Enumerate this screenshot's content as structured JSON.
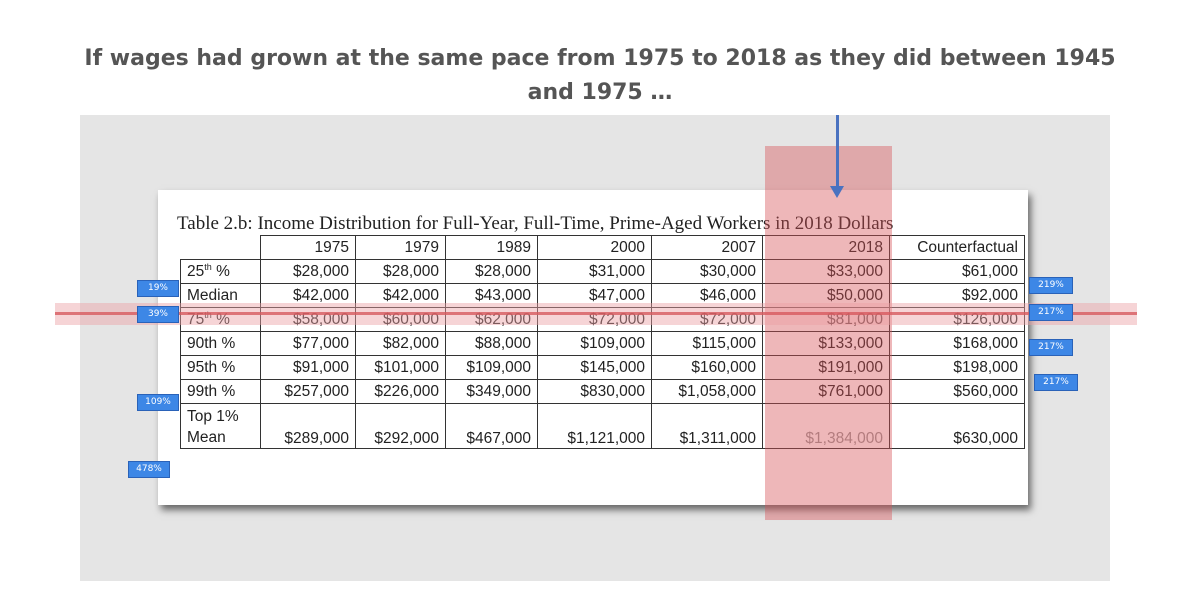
{
  "headline": "If wages had grown at the same pace from 1975 to 2018 as they did between 1945 and 1975 …",
  "table": {
    "caption": "Table 2.b: Income Distribution for Full-Year, Full-Time, Prime-Aged Workers in 2018 Dollars",
    "headers": [
      "1975",
      "1979",
      "1989",
      "2000",
      "2007",
      "2018",
      "Counterfactual"
    ],
    "rows": [
      {
        "label": "25",
        "label_sup": "th",
        "label_rest": " %",
        "values": [
          "$28,000",
          "$28,000",
          "$28,000",
          "$31,000",
          "$30,000",
          "$33,000",
          "$61,000"
        ]
      },
      {
        "label": "Median",
        "values": [
          "$42,000",
          "$42,000",
          "$43,000",
          "$47,000",
          "$46,000",
          "$50,000",
          "$92,000"
        ]
      },
      {
        "label": "75",
        "label_sup": "th",
        "label_rest": " %",
        "values": [
          "$58,000",
          "$60,000",
          "$62,000",
          "$72,000",
          "$72,000",
          "$81,000",
          "$126,000"
        ]
      },
      {
        "label": "90th %",
        "values": [
          "$77,000",
          "$82,000",
          "$88,000",
          "$109,000",
          "$115,000",
          "$133,000",
          "$168,000"
        ]
      },
      {
        "label": "95th %",
        "values": [
          "$91,000",
          "$101,000",
          "$109,000",
          "$145,000",
          "$160,000",
          "$191,000",
          "$198,000"
        ]
      },
      {
        "label": "99th %",
        "values": [
          "$257,000",
          "$226,000",
          "$349,000",
          "$830,000",
          "$1,058,000",
          "$761,000",
          "$560,000"
        ]
      },
      {
        "label_line1": "Top 1%",
        "label_line2": "Mean",
        "values": [
          "$289,000",
          "$292,000",
          "$467,000",
          "$1,121,000",
          "$1,311,000",
          "$1,384,000",
          "$630,000"
        ]
      }
    ]
  },
  "left_tags": [
    "19%",
    "39%",
    "109%",
    "478%"
  ],
  "right_tags": [
    "219%",
    "217%",
    "217%",
    "217%"
  ],
  "colors": {
    "highlight_band": "#d65458",
    "arrow": "#4a72c0",
    "tag": "#3d87e6",
    "headline": "#555555"
  }
}
